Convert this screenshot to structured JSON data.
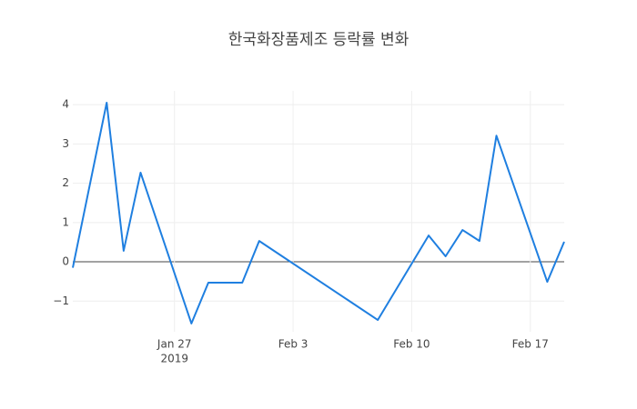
{
  "chart_data": {
    "type": "line",
    "title": "한국화장품제조 등락률 변화",
    "x": [
      "2019-01-21",
      "2019-01-23",
      "2019-01-24",
      "2019-01-25",
      "2019-01-28",
      "2019-01-29",
      "2019-01-31",
      "2019-02-01",
      "2019-02-08",
      "2019-02-11",
      "2019-02-12",
      "2019-02-13",
      "2019-02-14",
      "2019-02-15",
      "2019-02-18",
      "2019-02-19"
    ],
    "series": [
      {
        "color": "#1f7fe0",
        "values": [
          -0.15,
          4.05,
          0.28,
          2.27,
          -1.57,
          -0.53,
          -0.53,
          0.53,
          -1.48,
          0.67,
          0.14,
          0.81,
          0.53,
          3.21,
          -0.51,
          0.51
        ]
      }
    ],
    "xlim": [
      "2019-01-21",
      "2019-02-19"
    ],
    "xticks": [
      {
        "value": "2019-01-27",
        "label": "Jan 27"
      },
      {
        "value": "2019-02-03",
        "label": "Feb 3"
      },
      {
        "value": "2019-02-10",
        "label": "Feb 10"
      },
      {
        "value": "2019-02-17",
        "label": "Feb 17"
      }
    ],
    "x_year_label": "2019",
    "ylim": [
      -1.78,
      4.35
    ],
    "yticks": [
      {
        "value": -1,
        "label": "−1"
      },
      0,
      1,
      2,
      3,
      4
    ],
    "grid": true
  }
}
